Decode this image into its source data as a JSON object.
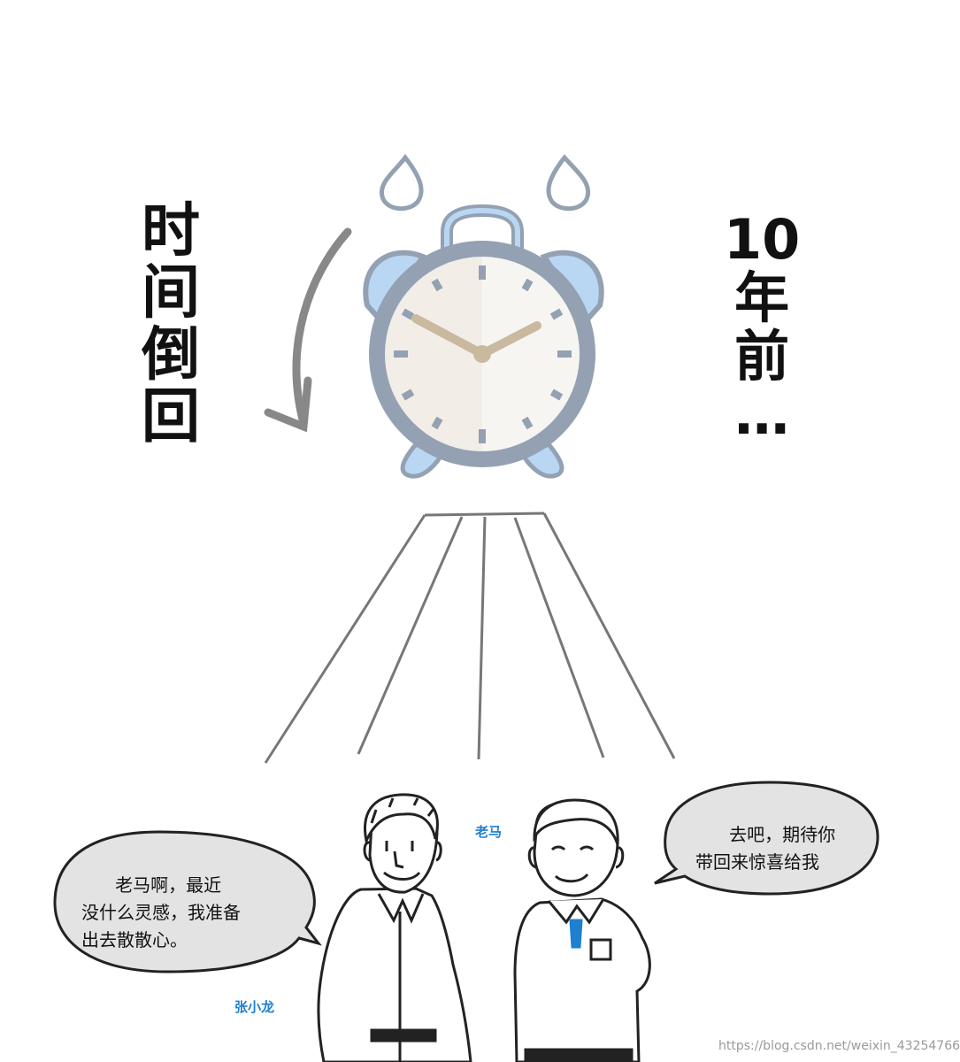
{
  "titles": {
    "left": [
      "时",
      "间",
      "倒",
      "回"
    ],
    "right": [
      "10",
      "年",
      "前",
      "…"
    ]
  },
  "dialog": {
    "left_bubble": "      老马啊，最近\n没什么灵感，我准备\n出去散散心。",
    "right_bubble": "      去吧，期待你\n带回来惊喜给我"
  },
  "characters": {
    "left_name": "张小龙",
    "right_name": "老马"
  },
  "watermark": "https://blog.csdn.net/weixin_43254766",
  "colors": {
    "clock_frame": "#93a1b2",
    "clock_bell": "#b9d6f2",
    "clock_face_left": "#f2ede7",
    "clock_face_right": "#f7f5f2",
    "hands": "#c8b99f",
    "bubble_fill": "#e3e3e3",
    "name_label": "#1f7fd0",
    "shirt_accent": "#1f7fd0"
  },
  "icons": [
    "alarm-clock-icon",
    "sweat-drop-icon",
    "curved-arrow-icon"
  ]
}
